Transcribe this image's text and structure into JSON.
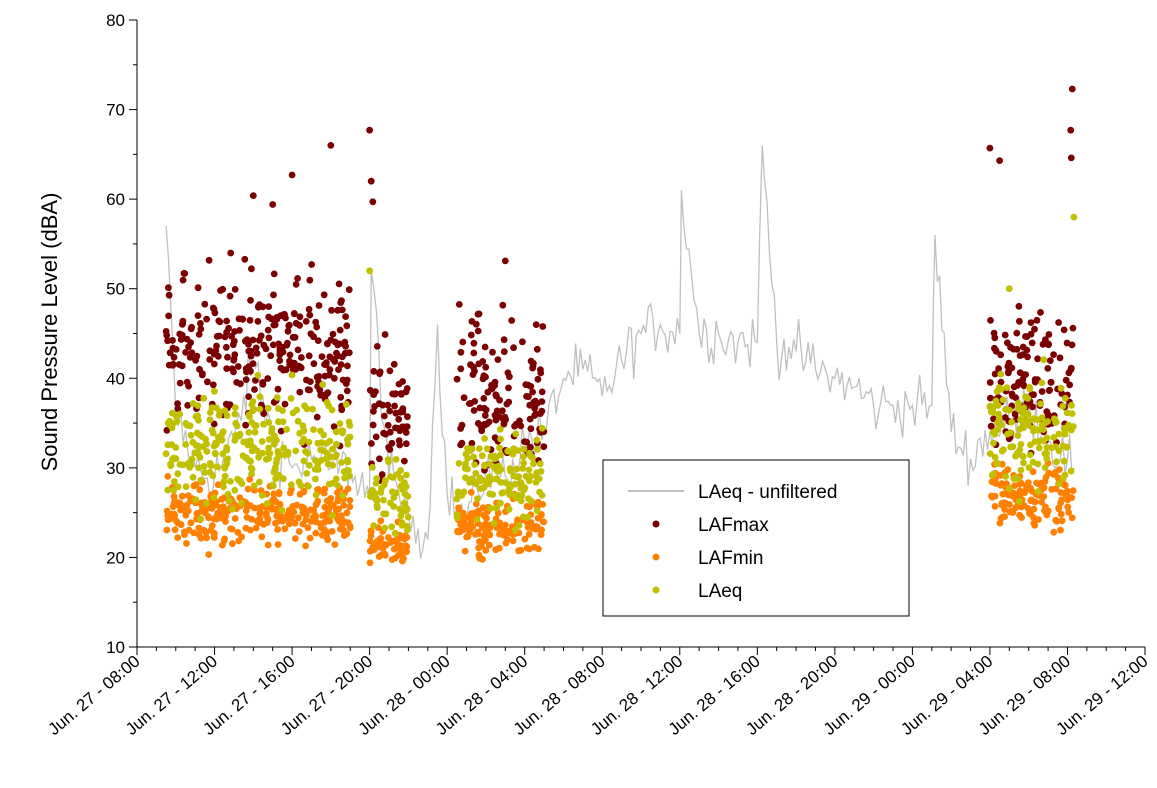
{
  "chart_data": {
    "type": "scatter",
    "title": "",
    "xlabel": "",
    "ylabel": "Sound Pressure Level (dBA)",
    "ylim": [
      10,
      80
    ],
    "xlim": [
      "2021-06-27T08:00",
      "2021-06-29T12:00"
    ],
    "y_ticks": [
      10,
      20,
      30,
      40,
      50,
      60,
      70,
      80
    ],
    "x_ticks": [
      {
        "t": "2021-06-27T08:00",
        "label": "Jun. 27 - 08:00"
      },
      {
        "t": "2021-06-27T12:00",
        "label": "Jun. 27 - 12:00"
      },
      {
        "t": "2021-06-27T16:00",
        "label": "Jun. 27 - 16:00"
      },
      {
        "t": "2021-06-27T20:00",
        "label": "Jun. 27 - 20:00"
      },
      {
        "t": "2021-06-28T00:00",
        "label": "Jun. 28 - 00:00"
      },
      {
        "t": "2021-06-28T04:00",
        "label": "Jun. 28 - 04:00"
      },
      {
        "t": "2021-06-28T08:00",
        "label": "Jun. 28 - 08:00"
      },
      {
        "t": "2021-06-28T12:00",
        "label": "Jun. 28 - 12:00"
      },
      {
        "t": "2021-06-28T16:00",
        "label": "Jun. 28 - 16:00"
      },
      {
        "t": "2021-06-28T20:00",
        "label": "Jun. 28 - 20:00"
      },
      {
        "t": "2021-06-29T00:00",
        "label": "Jun. 29 - 00:00"
      },
      {
        "t": "2021-06-29T04:00",
        "label": "Jun. 29 - 04:00"
      },
      {
        "t": "2021-06-29T08:00",
        "label": "Jun. 29 - 08:00"
      },
      {
        "t": "2021-06-29T12:00",
        "label": "Jun. 29 - 12:00"
      }
    ],
    "legend": {
      "position": "lower-center"
    },
    "series": [
      {
        "name": "LAeq - unfiltered",
        "kind": "line",
        "color": "#c0c0c0",
        "points": [
          [
            "2021-06-27T09:30",
            57
          ],
          [
            "2021-06-27T10:00",
            36
          ],
          [
            "2021-06-27T11:00",
            30
          ],
          [
            "2021-06-27T12:00",
            29
          ],
          [
            "2021-06-27T13:00",
            33
          ],
          [
            "2021-06-27T14:00",
            42
          ],
          [
            "2021-06-27T15:00",
            33
          ],
          [
            "2021-06-27T16:00",
            30
          ],
          [
            "2021-06-27T17:00",
            31
          ],
          [
            "2021-06-27T18:00",
            30
          ],
          [
            "2021-06-27T19:00",
            30
          ],
          [
            "2021-06-27T20:00",
            27
          ],
          [
            "2021-06-27T20:05",
            52
          ],
          [
            "2021-06-27T21:00",
            29
          ],
          [
            "2021-06-27T22:00",
            25
          ],
          [
            "2021-06-27T23:00",
            22
          ],
          [
            "2021-06-27T23:30",
            46
          ],
          [
            "2021-06-28T00:00",
            27
          ],
          [
            "2021-06-28T01:00",
            24
          ],
          [
            "2021-06-28T02:00",
            30
          ],
          [
            "2021-06-28T03:00",
            29
          ],
          [
            "2021-06-28T04:00",
            33
          ],
          [
            "2021-06-28T05:00",
            34
          ],
          [
            "2021-06-28T06:00",
            40
          ],
          [
            "2021-06-28T07:00",
            41
          ],
          [
            "2021-06-28T08:00",
            38
          ],
          [
            "2021-06-28T09:00",
            42
          ],
          [
            "2021-06-28T10:00",
            45
          ],
          [
            "2021-06-28T11:00",
            46
          ],
          [
            "2021-06-28T12:00",
            45
          ],
          [
            "2021-06-28T12:05",
            61
          ],
          [
            "2021-06-28T13:00",
            45
          ],
          [
            "2021-06-28T14:00",
            45
          ],
          [
            "2021-06-28T15:00",
            44
          ],
          [
            "2021-06-28T16:00",
            44
          ],
          [
            "2021-06-28T16:15",
            66
          ],
          [
            "2021-06-28T17:00",
            44
          ],
          [
            "2021-06-28T18:00",
            43
          ],
          [
            "2021-06-28T19:00",
            41
          ],
          [
            "2021-06-28T20:00",
            40
          ],
          [
            "2021-06-28T21:00",
            39
          ],
          [
            "2021-06-28T22:00",
            37
          ],
          [
            "2021-06-28T23:00",
            37
          ],
          [
            "2021-06-29T00:00",
            37
          ],
          [
            "2021-06-29T01:00",
            37
          ],
          [
            "2021-06-29T01:10",
            56
          ],
          [
            "2021-06-29T02:00",
            34
          ],
          [
            "2021-06-29T03:00",
            31
          ],
          [
            "2021-06-29T04:00",
            34
          ],
          [
            "2021-06-29T05:00",
            35
          ],
          [
            "2021-06-29T06:00",
            37
          ],
          [
            "2021-06-29T07:00",
            33
          ],
          [
            "2021-06-29T08:00",
            31
          ],
          [
            "2021-06-29T08:20",
            30
          ]
        ]
      },
      {
        "name": "LAFmax",
        "kind": "scatter",
        "color": "#7b0000",
        "segments": [
          {
            "start": "2021-06-27T09:30",
            "end": "2021-06-27T19:00",
            "mean": 43,
            "spread": 7
          },
          {
            "start": "2021-06-27T20:00",
            "end": "2021-06-27T22:00",
            "mean": 36,
            "spread": 6
          },
          {
            "start": "2021-06-28T00:30",
            "end": "2021-06-28T05:00",
            "mean": 38,
            "spread": 7
          },
          {
            "start": "2021-06-29T04:00",
            "end": "2021-06-29T08:20",
            "mean": 40,
            "spread": 6
          }
        ],
        "points": [
          [
            "2021-06-27T14:00",
            60.4
          ],
          [
            "2021-06-27T15:00",
            59.4
          ],
          [
            "2021-06-27T16:00",
            62.7
          ],
          [
            "2021-06-27T18:00",
            66
          ],
          [
            "2021-06-27T20:00",
            67.7
          ],
          [
            "2021-06-27T20:05",
            62
          ],
          [
            "2021-06-27T20:10",
            59.7
          ],
          [
            "2021-06-28T03:00",
            53.1
          ],
          [
            "2021-06-29T04:00",
            65.7
          ],
          [
            "2021-06-29T04:30",
            64.3
          ],
          [
            "2021-06-29T08:15",
            72.3
          ],
          [
            "2021-06-29T08:10",
            67.7
          ],
          [
            "2021-06-29T08:12",
            64.6
          ]
        ]
      },
      {
        "name": "LAFmin",
        "kind": "scatter",
        "color": "#ff8000",
        "segments": [
          {
            "start": "2021-06-27T09:30",
            "end": "2021-06-27T19:00",
            "mean": 25,
            "spread": 3
          },
          {
            "start": "2021-06-27T20:00",
            "end": "2021-06-27T22:00",
            "mean": 21.5,
            "spread": 1.5
          },
          {
            "start": "2021-06-28T00:30",
            "end": "2021-06-28T05:00",
            "mean": 23.5,
            "spread": 2.5
          },
          {
            "start": "2021-06-29T04:00",
            "end": "2021-06-29T08:20",
            "mean": 27,
            "spread": 3
          }
        ],
        "points": []
      },
      {
        "name": "LAeq",
        "kind": "scatter",
        "color": "#c0c000",
        "segments": [
          {
            "start": "2021-06-27T09:30",
            "end": "2021-06-27T19:00",
            "mean": 32,
            "spread": 5
          },
          {
            "start": "2021-06-27T20:00",
            "end": "2021-06-27T22:00",
            "mean": 27,
            "spread": 4
          },
          {
            "start": "2021-06-28T00:30",
            "end": "2021-06-28T05:00",
            "mean": 29,
            "spread": 4
          },
          {
            "start": "2021-06-29T04:00",
            "end": "2021-06-29T08:20",
            "mean": 34,
            "spread": 5
          }
        ],
        "points": [
          [
            "2021-06-27T20:00",
            52
          ],
          [
            "2021-06-29T05:00",
            50
          ],
          [
            "2021-06-29T08:20",
            58
          ]
        ]
      }
    ]
  }
}
